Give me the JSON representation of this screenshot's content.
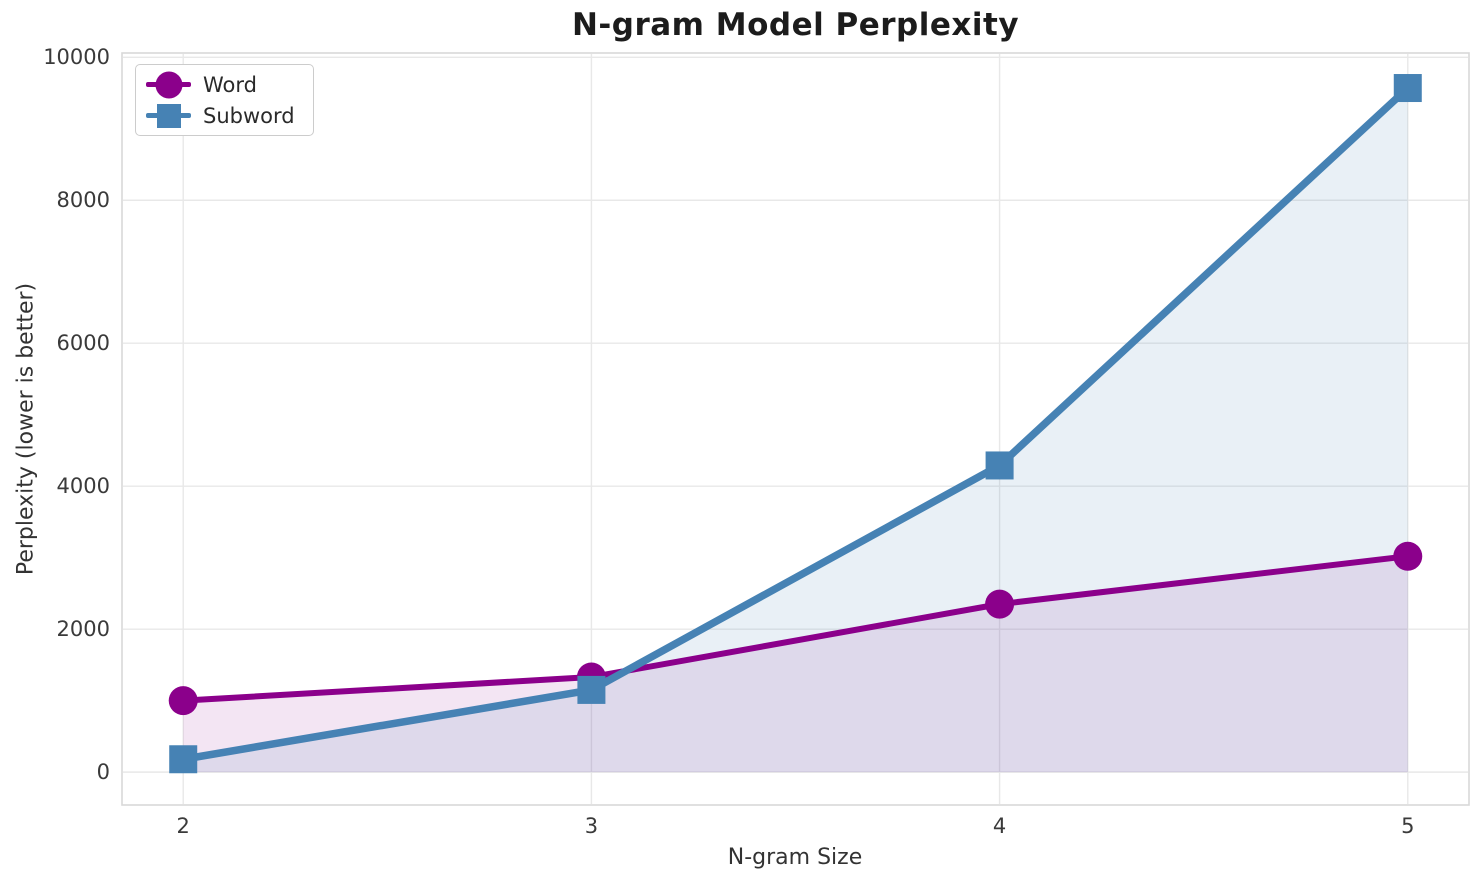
{
  "chart_data": {
    "type": "line",
    "title": "N-gram Model Perplexity",
    "xlabel": "N-gram Size",
    "ylabel": "Perplexity (lower is better)",
    "x": [
      2,
      3,
      4,
      5
    ],
    "series": [
      {
        "name": "Word",
        "marker": "circle",
        "color": "#8B008B",
        "fill_alpha": 0.1,
        "line_width": 6,
        "values": [
          1000,
          1330,
          2350,
          3020
        ]
      },
      {
        "name": "Subword",
        "marker": "square",
        "color": "#4682B4",
        "fill_alpha": 0.12,
        "line_width": 7.5,
        "values": [
          180,
          1150,
          4290,
          9570
        ]
      }
    ],
    "xticks": [
      2,
      3,
      4,
      5
    ],
    "yticks": [
      0,
      2000,
      4000,
      6000,
      8000,
      10000
    ],
    "xlim": [
      1.85,
      5.15
    ],
    "ylim": [
      -460,
      10060
    ],
    "grid": true,
    "grid_color": "#e8e8e8",
    "spine_color": "#d9d9d9",
    "fill_to_zero": true,
    "legend_position": "upper-left"
  }
}
